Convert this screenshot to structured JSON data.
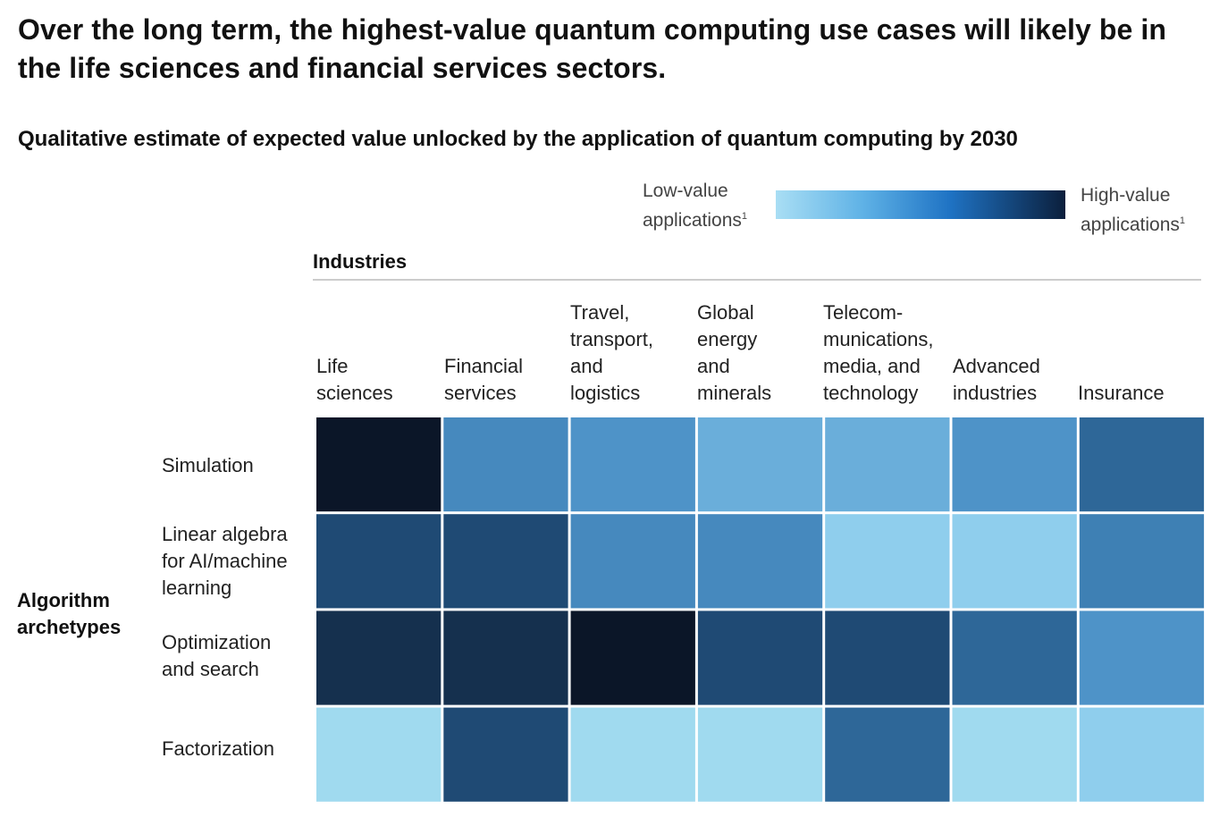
{
  "headline": "Over the long term, the highest-value quantum computing use cases will likely be in the life sciences and financial services sectors.",
  "chart_data": {
    "type": "heatmap",
    "title": "Qualitative estimate of expected value unlocked by the application of quantum computing by 2030",
    "legend": {
      "low_label": "Low-value\napplications",
      "high_label": "High-value\napplications",
      "footnote_mark": "1",
      "colors": [
        "#a9def4",
        "#5fb2e6",
        "#1f73c4",
        "#0b1f3c"
      ]
    },
    "columns_header": "Industries",
    "rows_header": "Algorithm\narchetypes",
    "columns": [
      "Life\nsciences",
      "Financial\nservices",
      "Travel,\ntransport,\nand\nlogistics",
      "Global\nenergy\nand\nminerals",
      "Telecom-\nmunications,\nmedia, and\ntechnology",
      "Advanced\nindustries",
      "Insurance"
    ],
    "rows": [
      "Simulation",
      "Linear algebra\nfor AI/machine\nlearning",
      "Optimization\nand search",
      "Factorization"
    ],
    "value_scale": "0 = low value, 10 = high value (relative, estimated from shading)",
    "values": [
      [
        10,
        4.5,
        4,
        3,
        3,
        4,
        6
      ],
      [
        7,
        7,
        4.5,
        4.5,
        1.5,
        1.5,
        5
      ],
      [
        8.5,
        8.5,
        10,
        7,
        7,
        6,
        4
      ],
      [
        0.5,
        7,
        0.5,
        0.5,
        6,
        0.5,
        1.5
      ]
    ]
  }
}
